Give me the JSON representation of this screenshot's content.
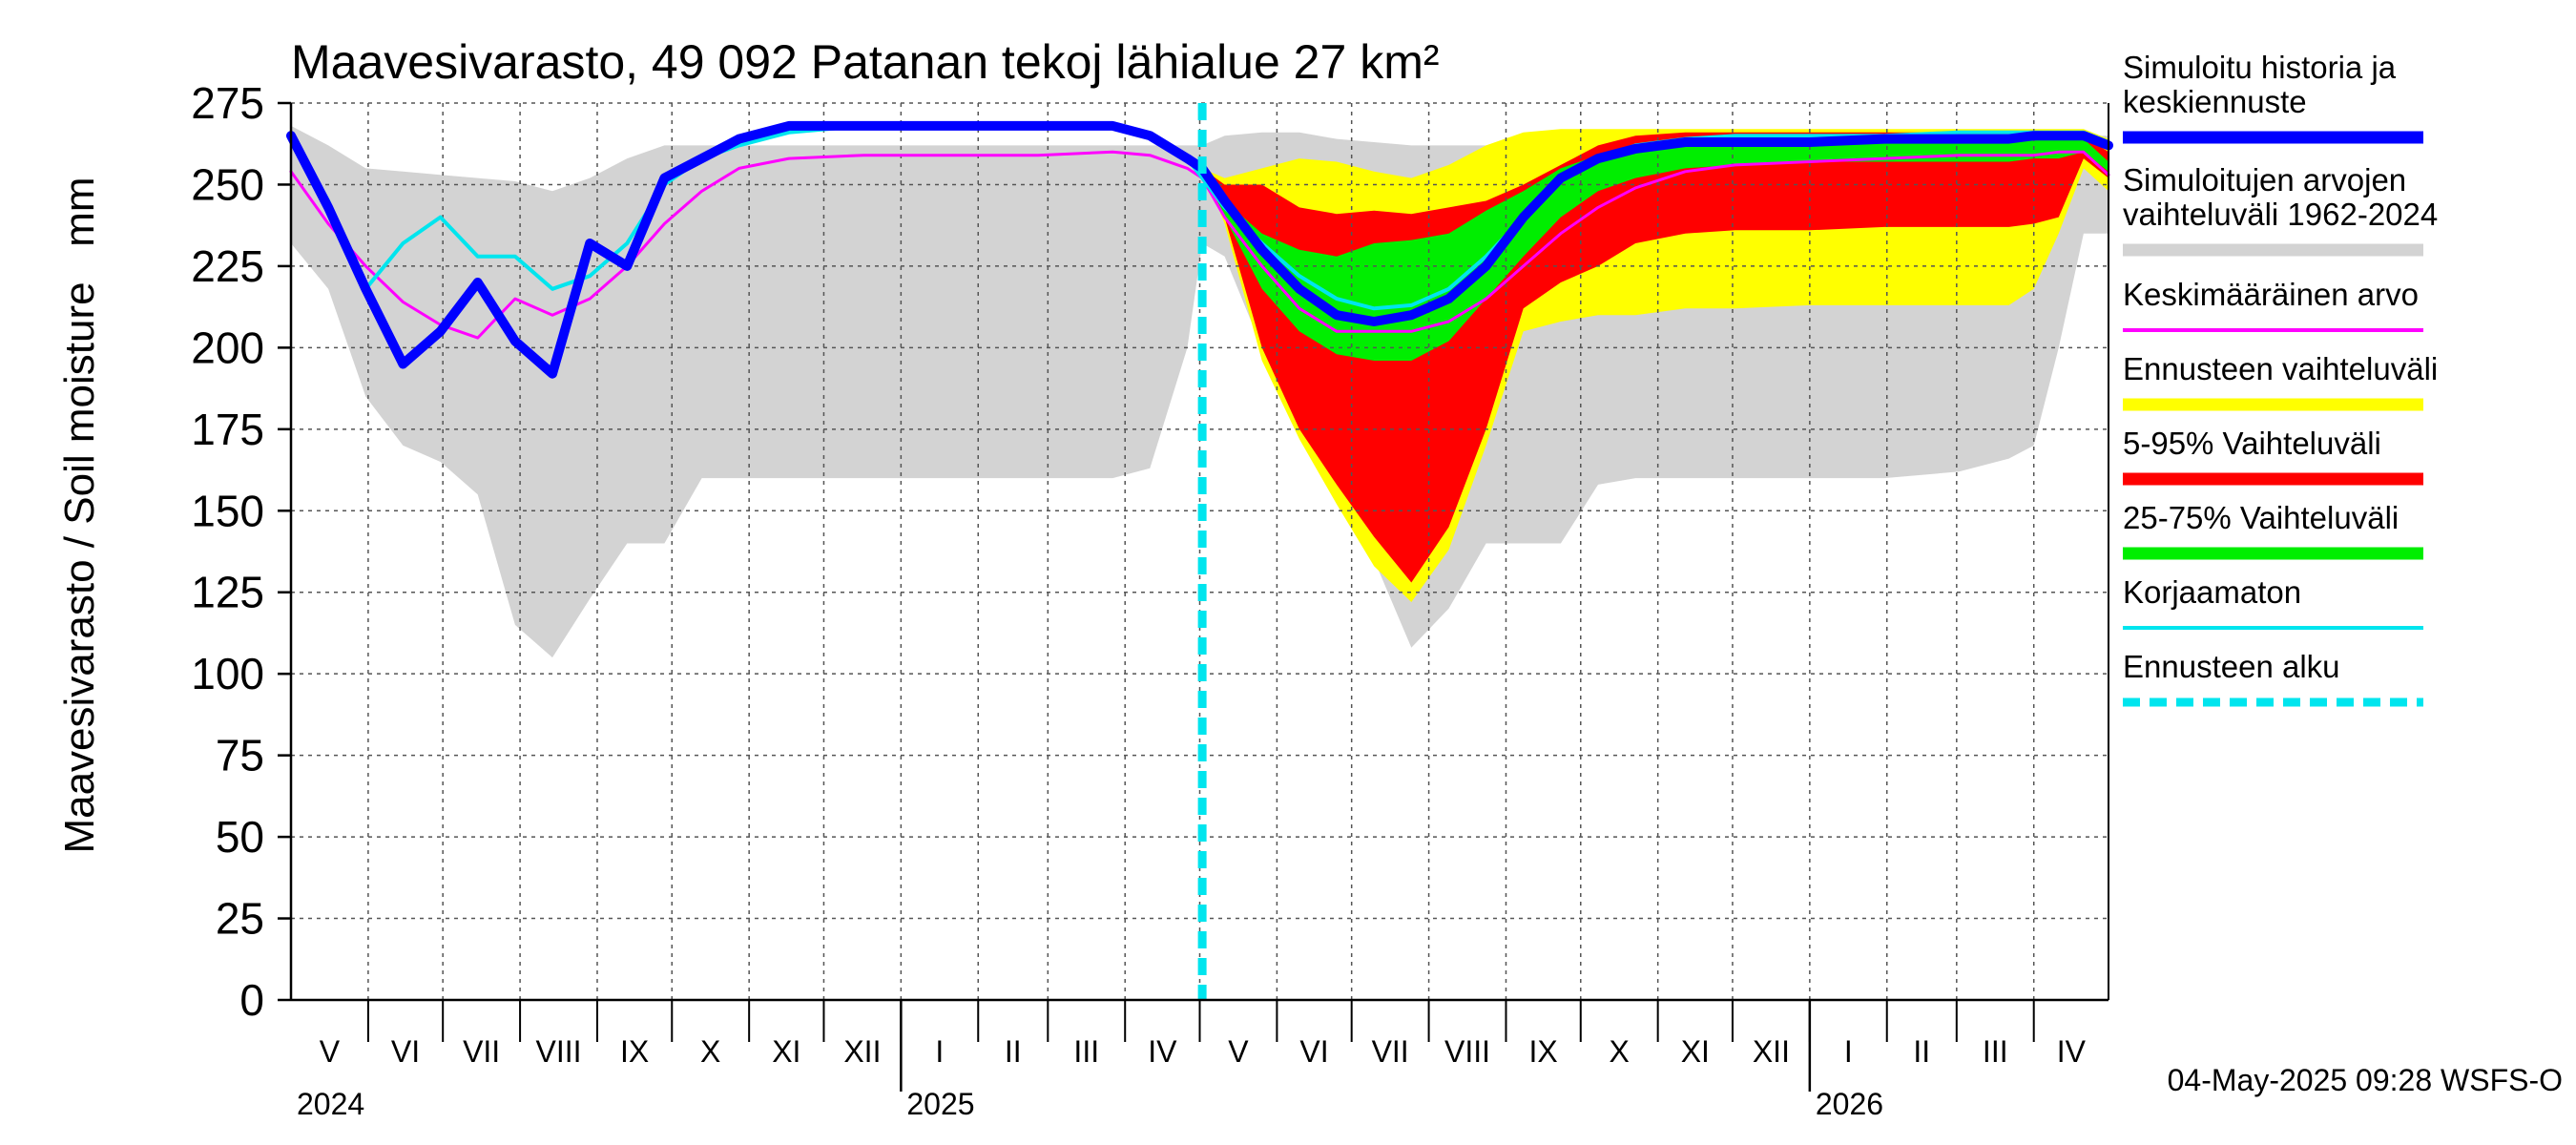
{
  "chart_data": {
    "type": "area",
    "title": "Maavesivarasto, 49 092 Patanan tekoj lähialue 27 km²",
    "ylabel": "Maavesivarasto / Soil moisture   mm",
    "ylim": [
      0,
      275
    ],
    "yticks": [
      0,
      25,
      50,
      75,
      100,
      125,
      150,
      175,
      200,
      225,
      250,
      275
    ],
    "xlim_days": [
      0,
      730
    ],
    "forecast_start_day": 366,
    "months": [
      {
        "label": "V",
        "day": 0
      },
      {
        "label": "VI",
        "day": 31
      },
      {
        "label": "VII",
        "day": 61
      },
      {
        "label": "VIII",
        "day": 92
      },
      {
        "label": "IX",
        "day": 123
      },
      {
        "label": "X",
        "day": 153
      },
      {
        "label": "XI",
        "day": 184
      },
      {
        "label": "XII",
        "day": 214
      },
      {
        "label": "I",
        "day": 245
      },
      {
        "label": "II",
        "day": 276
      },
      {
        "label": "III",
        "day": 304
      },
      {
        "label": "IV",
        "day": 335
      },
      {
        "label": "V",
        "day": 365
      },
      {
        "label": "VI",
        "day": 396
      },
      {
        "label": "VII",
        "day": 426
      },
      {
        "label": "VIII",
        "day": 457
      },
      {
        "label": "IX",
        "day": 488
      },
      {
        "label": "X",
        "day": 518
      },
      {
        "label": "XI",
        "day": 549
      },
      {
        "label": "XII",
        "day": 579
      },
      {
        "label": "I",
        "day": 610
      },
      {
        "label": "II",
        "day": 641
      },
      {
        "label": "III",
        "day": 669
      },
      {
        "label": "IV",
        "day": 700
      }
    ],
    "years": [
      {
        "label": "2024",
        "day": 0
      },
      {
        "label": "2025",
        "day": 245
      },
      {
        "label": "2026",
        "day": 610
      }
    ],
    "year_boundaries": [
      245,
      610
    ],
    "x_days": [
      0,
      15,
      30,
      45,
      60,
      75,
      90,
      105,
      120,
      135,
      150,
      165,
      180,
      200,
      230,
      260,
      300,
      330,
      345,
      360,
      366,
      375,
      390,
      405,
      420,
      435,
      450,
      465,
      480,
      495,
      510,
      525,
      540,
      560,
      580,
      610,
      640,
      670,
      690,
      700,
      710,
      720,
      730
    ],
    "series": [
      {
        "name": "Simuloitujen arvojen vaihteluväli 1962-2024",
        "kind": "band",
        "color": "#d3d3d3",
        "upper": [
          268,
          262,
          255,
          254,
          253,
          252,
          251,
          248,
          252,
          258,
          262,
          262,
          262,
          262,
          262,
          262,
          262,
          262,
          262,
          262,
          262,
          265,
          266,
          266,
          264,
          263,
          262,
          262,
          262,
          262,
          262,
          262,
          262,
          262,
          262,
          262,
          262,
          262,
          262,
          262,
          262,
          265,
          265
        ],
        "lower": [
          232,
          218,
          185,
          170,
          165,
          155,
          115,
          105,
          123,
          140,
          140,
          160,
          160,
          160,
          160,
          160,
          160,
          160,
          163,
          200,
          232,
          228,
          200,
          175,
          160,
          135,
          108,
          120,
          140,
          140,
          140,
          158,
          160,
          160,
          160,
          160,
          160,
          162,
          166,
          170,
          200,
          235,
          235
        ]
      },
      {
        "name": "Ennusteen vaihteluväli",
        "kind": "band",
        "color": "#ffff00",
        "upper": [
          null,
          null,
          null,
          null,
          null,
          null,
          null,
          null,
          null,
          null,
          null,
          null,
          null,
          null,
          null,
          null,
          null,
          null,
          null,
          null,
          255,
          252,
          255,
          258,
          257,
          254,
          252,
          256,
          262,
          266,
          267,
          267,
          267,
          267,
          267,
          267,
          267,
          267,
          267,
          267,
          267,
          267,
          264
        ],
        "lower": [
          null,
          null,
          null,
          null,
          null,
          null,
          null,
          null,
          null,
          null,
          null,
          null,
          null,
          null,
          null,
          null,
          null,
          null,
          null,
          null,
          255,
          238,
          196,
          172,
          152,
          133,
          122,
          138,
          170,
          205,
          208,
          210,
          210,
          212,
          212,
          213,
          213,
          213,
          213,
          218,
          235,
          255,
          248
        ]
      },
      {
        "name": "5-95% Vaihteluväli",
        "kind": "band",
        "color": "#ff0000",
        "upper": [
          null,
          null,
          null,
          null,
          null,
          null,
          null,
          null,
          null,
          null,
          null,
          null,
          null,
          null,
          null,
          null,
          null,
          null,
          null,
          null,
          255,
          250,
          250,
          243,
          241,
          242,
          241,
          243,
          245,
          250,
          256,
          262,
          265,
          266,
          266,
          266,
          266,
          266,
          266,
          266,
          266,
          265,
          260
        ],
        "lower": [
          null,
          null,
          null,
          null,
          null,
          null,
          null,
          null,
          null,
          null,
          null,
          null,
          null,
          null,
          null,
          null,
          null,
          null,
          null,
          null,
          255,
          240,
          200,
          175,
          158,
          142,
          128,
          145,
          175,
          212,
          220,
          225,
          232,
          235,
          236,
          236,
          237,
          237,
          237,
          238,
          240,
          258,
          252
        ]
      },
      {
        "name": "25-75% Vaihteluväli",
        "kind": "band",
        "color": "#00ee00",
        "upper": [
          null,
          null,
          null,
          null,
          null,
          null,
          null,
          null,
          null,
          null,
          null,
          null,
          null,
          null,
          null,
          null,
          null,
          null,
          null,
          null,
          255,
          245,
          235,
          230,
          228,
          232,
          233,
          235,
          242,
          248,
          255,
          259,
          262,
          264,
          265,
          265,
          265,
          265,
          265,
          266,
          266,
          264,
          257
        ],
        "lower": [
          null,
          null,
          null,
          null,
          null,
          null,
          null,
          null,
          null,
          null,
          null,
          null,
          null,
          null,
          null,
          null,
          null,
          null,
          null,
          null,
          255,
          240,
          218,
          205,
          198,
          196,
          196,
          202,
          215,
          228,
          240,
          248,
          252,
          255,
          256,
          257,
          257,
          257,
          257,
          258,
          258,
          260,
          254
        ]
      },
      {
        "name": "Keskimääräinen arvo",
        "kind": "line",
        "color": "#ff00ff",
        "width": 3,
        "values": [
          254,
          238,
          225,
          214,
          207,
          203,
          215,
          210,
          215,
          225,
          238,
          248,
          255,
          258,
          259,
          259,
          259,
          260,
          259,
          255,
          252,
          240,
          225,
          212,
          205,
          205,
          205,
          208,
          215,
          225,
          235,
          243,
          249,
          254,
          256,
          257,
          258,
          259,
          259,
          259,
          260,
          260,
          253
        ]
      },
      {
        "name": "Korjaamaton",
        "kind": "line",
        "color": "#00e5ee",
        "width": 4,
        "values": [
          265,
          245,
          218,
          232,
          240,
          228,
          228,
          218,
          222,
          232,
          250,
          258,
          262,
          266,
          268,
          268,
          268,
          268,
          265,
          258,
          252,
          243,
          232,
          222,
          215,
          212,
          213,
          218,
          228,
          240,
          252,
          258,
          262,
          264,
          265,
          265,
          265,
          266,
          266,
          266,
          266,
          266,
          263
        ]
      },
      {
        "name": "Simuloitu historia ja keskiennuste",
        "kind": "line",
        "color": "#0000ff",
        "width": 10,
        "values": [
          265,
          243,
          218,
          195,
          205,
          220,
          202,
          192,
          232,
          225,
          252,
          258,
          264,
          268,
          268,
          268,
          268,
          268,
          265,
          258,
          255,
          245,
          230,
          218,
          210,
          208,
          210,
          215,
          225,
          240,
          252,
          258,
          261,
          263,
          263,
          263,
          264,
          264,
          264,
          265,
          265,
          265,
          262
        ]
      }
    ],
    "legend": [
      {
        "label": "Simuloitu historia ja keskiennuste",
        "color": "#0000ff",
        "style": "thick"
      },
      {
        "label": "Simuloitujen arvojen vaihteluväli 1962-2024",
        "color": "#d3d3d3",
        "style": "thick"
      },
      {
        "label": "Keskimääräinen arvo",
        "color": "#ff00ff",
        "style": "thin"
      },
      {
        "label": "Ennusteen vaihteluväli",
        "color": "#ffff00",
        "style": "thick"
      },
      {
        "label": "5-95% Vaihteluväli",
        "color": "#ff0000",
        "style": "thick"
      },
      {
        "label": "25-75% Vaihteluväli",
        "color": "#00ee00",
        "style": "thick"
      },
      {
        "label": "Korjaamaton",
        "color": "#00e5ee",
        "style": "thin"
      },
      {
        "label": "Ennusteen alku",
        "color": "#00e5ee",
        "style": "dashed"
      }
    ],
    "legend_position": "right",
    "timestamp": "04-May-2025 09:28 WSFS-O"
  }
}
